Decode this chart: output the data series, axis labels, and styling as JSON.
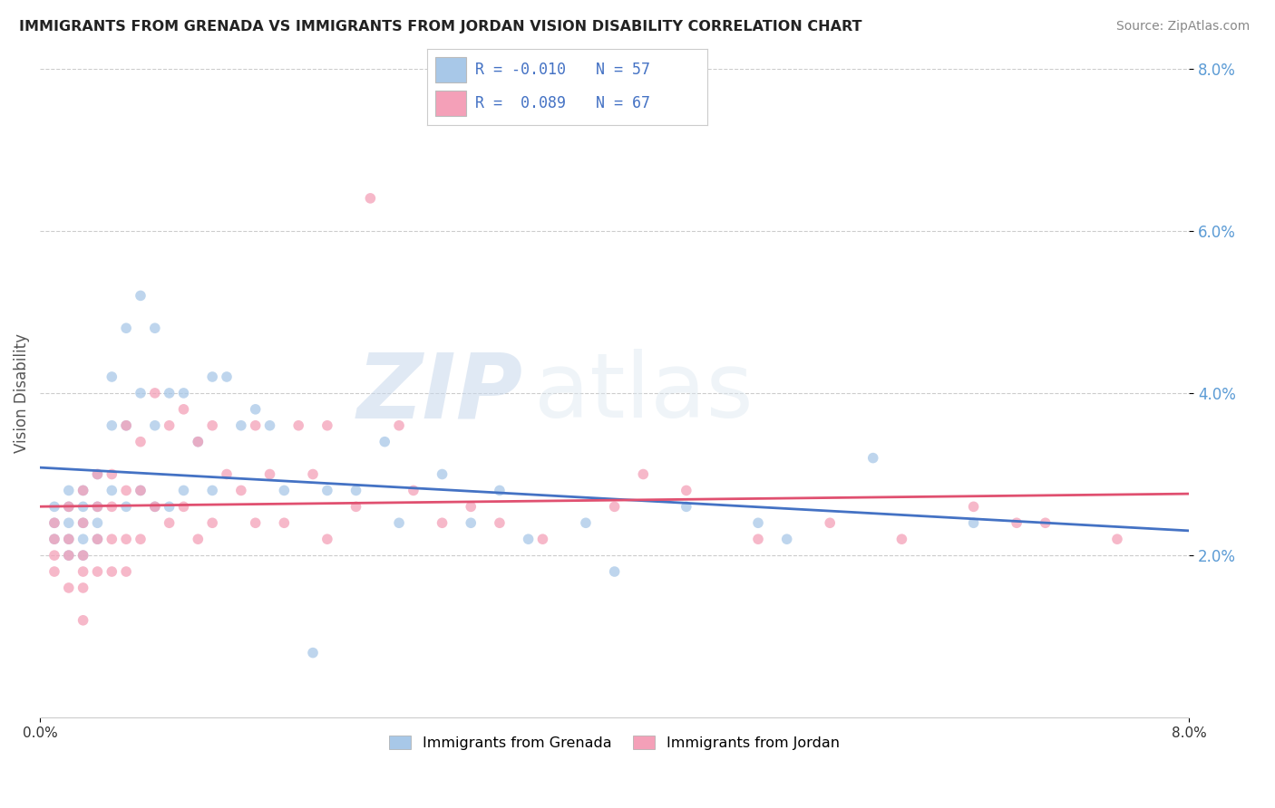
{
  "title": "IMMIGRANTS FROM GRENADA VS IMMIGRANTS FROM JORDAN VISION DISABILITY CORRELATION CHART",
  "source": "Source: ZipAtlas.com",
  "ylabel": "Vision Disability",
  "legend_label1": "Immigrants from Grenada",
  "legend_label2": "Immigrants from Jordan",
  "R1": "-0.010",
  "N1": "57",
  "R2": "0.089",
  "N2": "67",
  "color1": "#a8c8e8",
  "color2": "#f4a0b8",
  "line_color1": "#4472c4",
  "line_color2": "#e05070",
  "xmin": 0.0,
  "xmax": 0.08,
  "ymin": 0.0,
  "ymax": 0.08,
  "background_color": "#ffffff",
  "watermark_zip": "ZIP",
  "watermark_atlas": "atlas",
  "grenada_x": [
    0.001,
    0.001,
    0.001,
    0.002,
    0.002,
    0.002,
    0.002,
    0.002,
    0.003,
    0.003,
    0.003,
    0.003,
    0.003,
    0.004,
    0.004,
    0.004,
    0.004,
    0.005,
    0.005,
    0.005,
    0.006,
    0.006,
    0.006,
    0.007,
    0.007,
    0.007,
    0.008,
    0.008,
    0.008,
    0.009,
    0.009,
    0.01,
    0.01,
    0.011,
    0.012,
    0.012,
    0.013,
    0.014,
    0.015,
    0.016,
    0.017,
    0.019,
    0.02,
    0.022,
    0.024,
    0.025,
    0.028,
    0.03,
    0.032,
    0.034,
    0.038,
    0.04,
    0.045,
    0.05,
    0.052,
    0.058,
    0.065
  ],
  "grenada_y": [
    0.026,
    0.024,
    0.022,
    0.028,
    0.026,
    0.024,
    0.022,
    0.02,
    0.028,
    0.026,
    0.024,
    0.022,
    0.02,
    0.03,
    0.026,
    0.024,
    0.022,
    0.042,
    0.036,
    0.028,
    0.048,
    0.036,
    0.026,
    0.052,
    0.04,
    0.028,
    0.048,
    0.036,
    0.026,
    0.04,
    0.026,
    0.04,
    0.028,
    0.034,
    0.042,
    0.028,
    0.042,
    0.036,
    0.038,
    0.036,
    0.028,
    0.008,
    0.028,
    0.028,
    0.034,
    0.024,
    0.03,
    0.024,
    0.028,
    0.022,
    0.024,
    0.018,
    0.026,
    0.024,
    0.022,
    0.032,
    0.024
  ],
  "jordan_x": [
    0.001,
    0.001,
    0.001,
    0.001,
    0.002,
    0.002,
    0.002,
    0.002,
    0.003,
    0.003,
    0.003,
    0.003,
    0.003,
    0.003,
    0.004,
    0.004,
    0.004,
    0.004,
    0.005,
    0.005,
    0.005,
    0.005,
    0.006,
    0.006,
    0.006,
    0.006,
    0.007,
    0.007,
    0.007,
    0.008,
    0.008,
    0.009,
    0.009,
    0.01,
    0.01,
    0.011,
    0.011,
    0.012,
    0.012,
    0.013,
    0.014,
    0.015,
    0.015,
    0.016,
    0.017,
    0.018,
    0.019,
    0.02,
    0.02,
    0.022,
    0.023,
    0.025,
    0.026,
    0.028,
    0.03,
    0.032,
    0.035,
    0.04,
    0.042,
    0.045,
    0.05,
    0.055,
    0.06,
    0.065,
    0.068,
    0.07,
    0.075
  ],
  "jordan_y": [
    0.024,
    0.022,
    0.02,
    0.018,
    0.026,
    0.022,
    0.02,
    0.016,
    0.028,
    0.024,
    0.02,
    0.018,
    0.016,
    0.012,
    0.03,
    0.026,
    0.022,
    0.018,
    0.03,
    0.026,
    0.022,
    0.018,
    0.036,
    0.028,
    0.022,
    0.018,
    0.034,
    0.028,
    0.022,
    0.04,
    0.026,
    0.036,
    0.024,
    0.038,
    0.026,
    0.034,
    0.022,
    0.036,
    0.024,
    0.03,
    0.028,
    0.036,
    0.024,
    0.03,
    0.024,
    0.036,
    0.03,
    0.036,
    0.022,
    0.026,
    0.064,
    0.036,
    0.028,
    0.024,
    0.026,
    0.024,
    0.022,
    0.026,
    0.03,
    0.028,
    0.022,
    0.024,
    0.022,
    0.026,
    0.024,
    0.024,
    0.022
  ]
}
